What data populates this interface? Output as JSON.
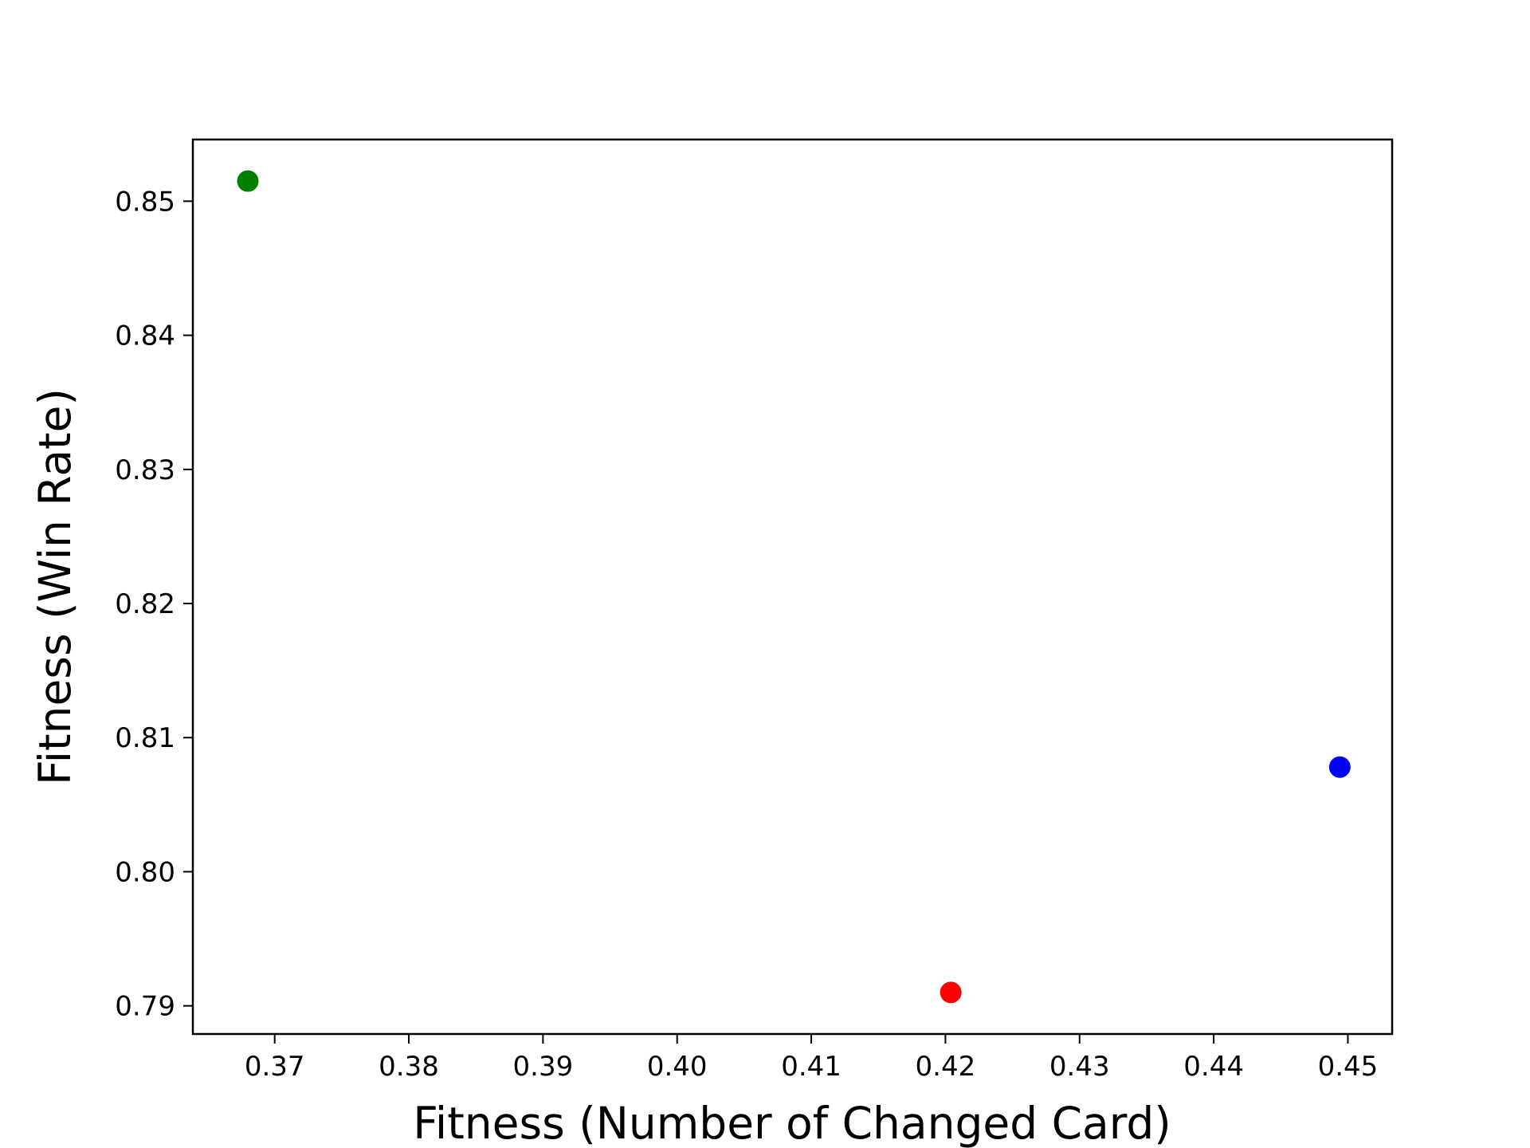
{
  "chart_data": {
    "type": "scatter",
    "title": "",
    "xlabel": "Fitness (Number of Changed Card)",
    "ylabel": "Fitness (Win Rate)",
    "xlim": [
      0.3639,
      0.4533
    ],
    "ylim": [
      0.7879,
      0.8546
    ],
    "xticks": [
      "0.37",
      "0.38",
      "0.39",
      "0.40",
      "0.41",
      "0.42",
      "0.43",
      "0.44",
      "0.45"
    ],
    "xtick_values": [
      0.37,
      0.38,
      0.39,
      0.4,
      0.41,
      0.42,
      0.43,
      0.44,
      0.45
    ],
    "yticks": [
      "0.79",
      "0.80",
      "0.81",
      "0.82",
      "0.83",
      "0.84",
      "0.85"
    ],
    "ytick_values": [
      0.79,
      0.8,
      0.81,
      0.82,
      0.83,
      0.84,
      0.85
    ],
    "grid": false,
    "points": [
      {
        "x": 0.368,
        "y": 0.8515,
        "color": "#008000"
      },
      {
        "x": 0.4204,
        "y": 0.791,
        "color": "#ff0000"
      },
      {
        "x": 0.4494,
        "y": 0.8078,
        "color": "#0000ff"
      }
    ]
  }
}
